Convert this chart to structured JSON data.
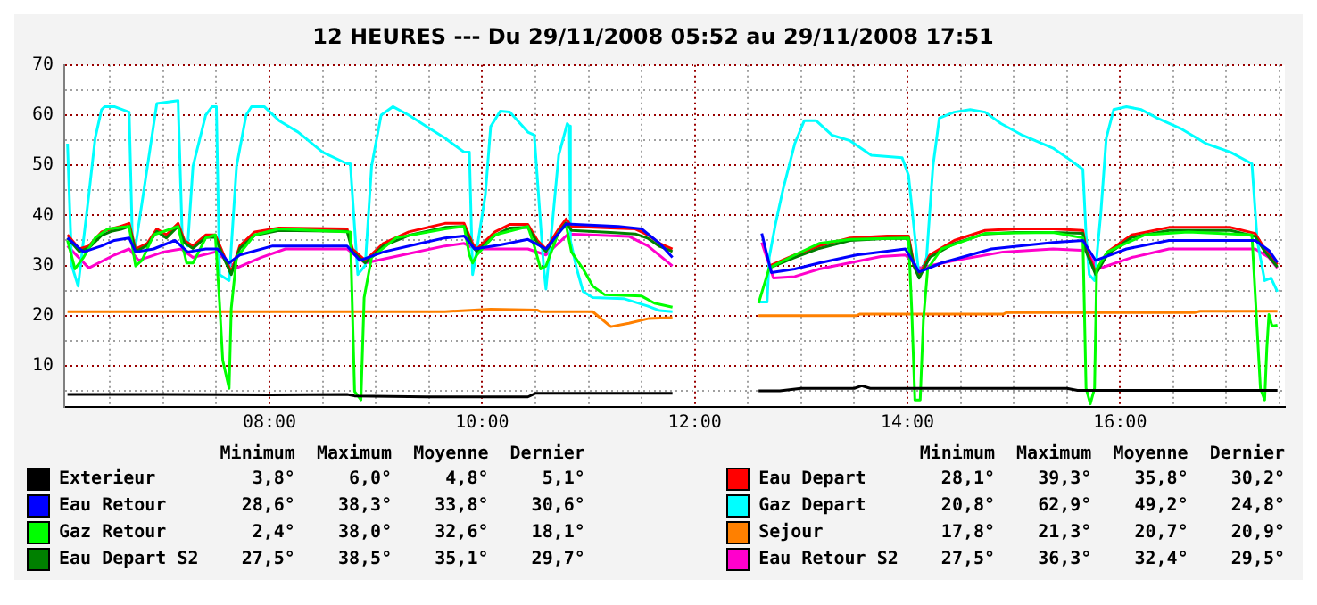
{
  "chart_data": {
    "type": "line",
    "title": "12 HEURES --- Du 29/11/2008 05:52 au 29/11/2008 17:51",
    "xlim": [
      6.07,
      17.55
    ],
    "xticks": [
      {
        "value": 6.5,
        "label": null
      },
      {
        "value": 7,
        "label": null
      },
      {
        "value": 7.5,
        "label": null
      },
      {
        "value": 8,
        "label": "08:00"
      },
      {
        "value": 8.5,
        "label": null
      },
      {
        "value": 9,
        "label": null
      },
      {
        "value": 9.5,
        "label": null
      },
      {
        "value": 10,
        "label": "10:00"
      },
      {
        "value": 10.5,
        "label": null
      },
      {
        "value": 11,
        "label": null
      },
      {
        "value": 11.5,
        "label": null
      },
      {
        "value": 12,
        "label": "12:00"
      },
      {
        "value": 12.5,
        "label": null
      },
      {
        "value": 13,
        "label": null
      },
      {
        "value": 13.5,
        "label": null
      },
      {
        "value": 14,
        "label": "14:00"
      },
      {
        "value": 14.5,
        "label": null
      },
      {
        "value": 15,
        "label": null
      },
      {
        "value": 15.5,
        "label": null
      },
      {
        "value": 16,
        "label": "16:00"
      },
      {
        "value": 16.5,
        "label": null
      },
      {
        "value": 17,
        "label": null
      },
      {
        "value": 17.5,
        "label": null
      }
    ],
    "ylim": [
      1.8,
      70
    ],
    "yticks": [
      {
        "value": 5,
        "label": null
      },
      10,
      {
        "value": 15,
        "label": null
      },
      20,
      {
        "value": 25,
        "label": null
      },
      30,
      {
        "value": 35,
        "label": null
      },
      40,
      {
        "value": 45,
        "label": null
      },
      50,
      {
        "value": 55,
        "label": null
      },
      60,
      {
        "value": 65,
        "label": null
      },
      70
    ],
    "grid": true,
    "legend": "bottom",
    "marker": "none",
    "line_style": "solid",
    "series": [
      {
        "name": "Exterieur",
        "color": "#000000",
        "x": [
          6.1,
          7.0,
          8.0,
          8.73,
          8.8,
          9.48,
          10.43,
          10.5,
          11.79,
          12.2,
          12.6,
          12.8,
          13.0,
          13.5,
          13.57,
          13.65,
          14.5,
          15.5,
          15.6,
          16.5,
          17.48
        ],
        "values": [
          4.3,
          4.3,
          4.2,
          4.3,
          4.0,
          3.8,
          3.8,
          4.5,
          4.5,
          null,
          5.0,
          5.0,
          5.5,
          5.5,
          6.0,
          5.5,
          5.5,
          5.5,
          5.1,
          5.1,
          5.1
        ]
      },
      {
        "name": "Eau Retour",
        "color": "#0000ff",
        "x": [
          6.1,
          6.25,
          6.42,
          6.54,
          6.68,
          6.74,
          6.91,
          7.11,
          7.23,
          7.4,
          7.51,
          7.62,
          7.72,
          8.03,
          8.73,
          8.85,
          9.07,
          9.42,
          9.65,
          9.83,
          9.93,
          10.17,
          10.43,
          10.6,
          10.79,
          11.28,
          11.5,
          11.67,
          11.79,
          12.2,
          12.63,
          12.72,
          12.94,
          13.17,
          13.52,
          13.98,
          14.11,
          14.32,
          14.79,
          15.37,
          15.65,
          15.77,
          16.06,
          16.46,
          17.27,
          17.4,
          17.48
        ],
        "values": [
          35.5,
          32.7,
          33.9,
          35.0,
          35.5,
          32.7,
          33.3,
          35.0,
          32.7,
          33.3,
          33.3,
          30.5,
          32.1,
          33.9,
          33.9,
          31.0,
          32.7,
          34.4,
          35.5,
          35.9,
          33.3,
          34.1,
          35.2,
          33.3,
          38.3,
          37.8,
          37.3,
          34.4,
          31.6,
          null,
          36.4,
          28.6,
          29.3,
          30.5,
          32.1,
          33.3,
          28.7,
          30.5,
          33.3,
          34.6,
          35.0,
          31.0,
          33.3,
          35.0,
          35.0,
          33.0,
          30.6
        ]
      },
      {
        "name": "Gaz Retour",
        "color": "#00ff00",
        "x": [
          6.1,
          6.17,
          6.25,
          6.36,
          6.48,
          6.68,
          6.74,
          6.8,
          6.91,
          7.14,
          7.22,
          7.28,
          7.4,
          7.49,
          7.53,
          7.56,
          7.62,
          7.64,
          7.69,
          7.86,
          8.09,
          8.76,
          8.8,
          8.86,
          8.89,
          8.96,
          9.19,
          9.65,
          9.83,
          9.88,
          9.91,
          9.95,
          10.12,
          10.43,
          10.49,
          10.55,
          10.6,
          10.72,
          10.79,
          10.84,
          10.95,
          11.04,
          11.15,
          11.5,
          11.62,
          11.79,
          12.2,
          12.6,
          12.7,
          12.94,
          13.17,
          13.46,
          14.01,
          14.04,
          14.07,
          14.12,
          14.15,
          14.19,
          14.32,
          14.73,
          15.37,
          15.65,
          15.68,
          15.72,
          15.76,
          15.78,
          15.88,
          16.23,
          16.64,
          17.24,
          17.32,
          17.36,
          17.38,
          17.4,
          17.43,
          17.48
        ],
        "values": [
          35.0,
          29.3,
          31.6,
          35.5,
          37.3,
          37.8,
          29.9,
          31.0,
          36.1,
          37.8,
          30.5,
          30.5,
          35.5,
          36.1,
          22.5,
          11.1,
          5.5,
          21.4,
          31.6,
          36.1,
          37.3,
          36.7,
          4.9,
          3.2,
          23.6,
          31.6,
          35.5,
          37.3,
          37.8,
          32.1,
          30.5,
          32.1,
          36.1,
          37.8,
          33.9,
          29.3,
          29.9,
          36.7,
          38.0,
          32.7,
          29.3,
          25.9,
          24.2,
          23.9,
          22.5,
          21.7,
          null,
          22.5,
          29.5,
          32.1,
          34.4,
          35.2,
          35.5,
          21.4,
          3.2,
          3.2,
          19.1,
          29.3,
          33.3,
          36.4,
          36.6,
          35.5,
          5.5,
          2.4,
          5.5,
          29.3,
          32.7,
          36.1,
          36.7,
          36.1,
          5.5,
          3.2,
          13.4,
          20.2,
          17.9,
          18.1
        ]
      },
      {
        "name": "Eau Depart S2",
        "color": "#008000",
        "x": [
          6.1,
          6.21,
          6.3,
          6.42,
          6.51,
          6.6,
          6.68,
          6.74,
          6.85,
          6.94,
          7.03,
          7.14,
          7.2,
          7.28,
          7.4,
          7.49,
          7.58,
          7.64,
          7.72,
          7.86,
          8.09,
          8.73,
          8.78,
          8.9,
          9.07,
          9.31,
          9.65,
          9.83,
          9.91,
          9.95,
          10.12,
          10.26,
          10.43,
          10.52,
          10.6,
          10.72,
          10.79,
          10.84,
          11.21,
          11.44,
          11.56,
          11.67,
          11.79,
          12.2,
          12.7,
          12.94,
          13.17,
          13.46,
          13.81,
          14.01,
          14.06,
          14.11,
          14.21,
          14.44,
          14.73,
          15.02,
          15.37,
          15.65,
          15.68,
          15.77,
          15.88,
          16.11,
          16.46,
          17.04,
          17.27,
          17.36,
          17.48
        ],
        "values": [
          35.5,
          32.8,
          33.5,
          36.0,
          36.8,
          37.2,
          37.8,
          32.8,
          34.0,
          36.8,
          35.5,
          37.8,
          34.5,
          33.4,
          35.6,
          35.6,
          31.0,
          28.2,
          33.4,
          36.0,
          37.0,
          36.8,
          32.8,
          30.5,
          33.9,
          36.0,
          37.6,
          37.8,
          33.8,
          32.8,
          36.0,
          37.5,
          37.6,
          34.5,
          32.8,
          36.6,
          38.5,
          37.0,
          36.6,
          36.3,
          35.4,
          33.8,
          32.8,
          null,
          29.5,
          31.6,
          33.4,
          35.0,
          35.4,
          35.4,
          29.9,
          27.5,
          31.6,
          34.4,
          36.3,
          36.6,
          36.6,
          36.4,
          32.8,
          28.2,
          32.2,
          35.6,
          37.0,
          37.0,
          35.8,
          32.8,
          29.7
        ]
      },
      {
        "name": "Eau Depart",
        "color": "#ff0000",
        "x": [
          6.1,
          6.21,
          6.3,
          6.42,
          6.51,
          6.6,
          6.68,
          6.74,
          6.85,
          6.94,
          7.03,
          7.14,
          7.2,
          7.28,
          7.4,
          7.49,
          7.58,
          7.64,
          7.72,
          7.86,
          8.09,
          8.73,
          8.78,
          8.9,
          9.07,
          9.31,
          9.65,
          9.83,
          9.91,
          9.95,
          10.12,
          10.26,
          10.43,
          10.52,
          10.6,
          10.72,
          10.79,
          10.84,
          11.21,
          11.44,
          11.56,
          11.67,
          11.79,
          12.2,
          12.7,
          12.94,
          13.17,
          13.46,
          13.81,
          14.01,
          14.06,
          14.11,
          14.21,
          14.44,
          14.73,
          15.02,
          15.37,
          15.65,
          15.68,
          15.77,
          15.88,
          16.11,
          16.46,
          17.04,
          17.27,
          17.36,
          17.48
        ],
        "values": [
          36.1,
          33.3,
          33.9,
          36.7,
          37.3,
          37.8,
          38.4,
          33.3,
          34.4,
          37.3,
          36.1,
          38.4,
          35.0,
          33.9,
          36.1,
          36.1,
          31.6,
          28.7,
          33.9,
          36.7,
          37.5,
          37.3,
          33.3,
          31.0,
          34.4,
          36.7,
          38.4,
          38.4,
          34.4,
          33.3,
          36.7,
          38.2,
          38.2,
          35.0,
          33.3,
          37.3,
          39.3,
          37.8,
          37.5,
          37.3,
          36.1,
          34.4,
          33.3,
          null,
          29.9,
          32.1,
          33.9,
          35.5,
          35.9,
          35.9,
          30.4,
          28.1,
          32.1,
          35.0,
          37.0,
          37.3,
          37.3,
          37.0,
          33.3,
          28.7,
          32.7,
          36.1,
          37.6,
          37.6,
          36.4,
          33.3,
          30.2
        ]
      },
      {
        "name": "Gaz Depart",
        "color": "#00ffff",
        "x": [
          6.1,
          6.14,
          6.2,
          6.3,
          6.36,
          6.42,
          6.45,
          6.54,
          6.68,
          6.71,
          6.74,
          6.94,
          7.14,
          7.18,
          7.23,
          7.28,
          7.4,
          7.46,
          7.5,
          7.53,
          7.62,
          7.69,
          7.78,
          7.83,
          7.95,
          8.09,
          8.27,
          8.5,
          8.73,
          8.76,
          8.83,
          8.9,
          8.96,
          9.05,
          9.16,
          9.31,
          9.48,
          9.65,
          9.83,
          9.88,
          9.91,
          9.93,
          10.03,
          10.08,
          10.17,
          10.26,
          10.43,
          10.49,
          10.58,
          10.6,
          10.66,
          10.72,
          10.8,
          10.82,
          10.83,
          10.89,
          10.95,
          11.04,
          11.33,
          11.56,
          11.67,
          11.79,
          12.2,
          12.6,
          12.68,
          12.7,
          12.76,
          12.83,
          12.94,
          13.03,
          13.14,
          13.29,
          13.46,
          13.66,
          13.95,
          14.01,
          14.11,
          14.18,
          14.24,
          14.3,
          14.44,
          14.59,
          14.73,
          14.88,
          15.08,
          15.37,
          15.54,
          15.65,
          15.68,
          15.71,
          15.76,
          15.82,
          15.87,
          15.94,
          16.06,
          16.2,
          16.35,
          16.58,
          16.81,
          17.04,
          17.24,
          17.29,
          17.36,
          17.42,
          17.48
        ],
        "values": [
          54.3,
          30.0,
          25.9,
          44.0,
          55.4,
          61.1,
          61.7,
          61.7,
          60.6,
          35.0,
          33.9,
          62.3,
          62.9,
          35.0,
          33.9,
          49.8,
          60.0,
          61.7,
          61.7,
          28.2,
          27.0,
          49.8,
          60.0,
          61.7,
          61.7,
          58.9,
          56.6,
          52.6,
          50.3,
          50.3,
          28.2,
          30.0,
          49.8,
          60.0,
          61.7,
          60.0,
          57.7,
          55.4,
          52.6,
          52.6,
          28.2,
          30.5,
          44.1,
          57.7,
          60.8,
          60.6,
          56.6,
          56.0,
          29.3,
          25.3,
          38.4,
          52.0,
          58.3,
          57.8,
          35.0,
          29.3,
          24.8,
          23.6,
          23.4,
          21.9,
          21.0,
          20.8,
          null,
          22.7,
          22.7,
          31.6,
          38.4,
          45.2,
          54.3,
          58.9,
          58.9,
          56.0,
          54.9,
          52.0,
          51.5,
          48.0,
          27.6,
          31.6,
          49.8,
          59.4,
          60.6,
          61.1,
          60.6,
          58.3,
          56.0,
          53.4,
          50.9,
          49.2,
          36.1,
          28.2,
          27.0,
          40.7,
          55.4,
          61.1,
          61.7,
          61.1,
          59.4,
          57.2,
          54.3,
          52.6,
          50.3,
          35.0,
          27.0,
          27.5,
          24.8
        ]
      },
      {
        "name": "Sejour",
        "color": "#ff8000",
        "x": [
          6.1,
          7.0,
          8.0,
          9.0,
          9.65,
          10.08,
          10.52,
          10.55,
          11.04,
          11.21,
          11.38,
          11.56,
          11.79,
          12.2,
          12.6,
          13.52,
          13.55,
          14.9,
          14.93,
          16.7,
          16.75,
          17.0,
          17.48
        ],
        "values": [
          20.8,
          20.8,
          20.8,
          20.8,
          20.8,
          21.3,
          21.1,
          20.8,
          20.8,
          17.8,
          18.5,
          19.4,
          19.6,
          null,
          20.0,
          20.0,
          20.3,
          20.3,
          20.6,
          20.6,
          20.9,
          20.9,
          20.9
        ]
      },
      {
        "name": "Eau Retour S2",
        "color": "#ff00cc",
        "x": [
          6.1,
          6.3,
          6.54,
          6.68,
          6.77,
          7.0,
          7.17,
          7.28,
          7.49,
          7.69,
          7.92,
          8.15,
          8.73,
          8.9,
          9.25,
          9.65,
          9.83,
          9.93,
          10.43,
          10.6,
          10.81,
          11.38,
          11.56,
          11.79,
          12.2,
          12.63,
          12.74,
          12.94,
          13.17,
          13.75,
          13.98,
          14.11,
          14.44,
          14.9,
          15.37,
          15.68,
          15.79,
          16.11,
          16.46,
          17.27,
          17.4,
          17.48
        ],
        "values": [
          33.9,
          29.5,
          32.1,
          33.3,
          31.0,
          32.7,
          33.3,
          31.6,
          32.7,
          29.5,
          31.6,
          33.3,
          33.3,
          30.5,
          32.1,
          33.9,
          34.4,
          33.3,
          33.3,
          32.1,
          36.3,
          35.8,
          33.9,
          29.9,
          null,
          34.6,
          27.5,
          27.8,
          29.3,
          31.8,
          32.1,
          29.5,
          31.0,
          32.7,
          33.3,
          33.0,
          29.3,
          31.6,
          33.3,
          33.3,
          31.6,
          29.5
        ]
      }
    ],
    "annotations": [
      "Minimum",
      "Maximum",
      "Moyenne",
      "Dernier",
      "Minimum",
      "Maximum",
      "Moyenne",
      "Dernier",
      "3,8°",
      "6,0°",
      "4,8°",
      "5,1°",
      "28,6°",
      "38,3°",
      "33,8°",
      "30,6°",
      "2,4°",
      "38,0°",
      "32,6°",
      "18,1°",
      "27,5°",
      "38,5°",
      "35,1°",
      "29,7°",
      "28,1°",
      "39,3°",
      "35,8°",
      "30,2°",
      "20,8°",
      "62,9°",
      "49,2°",
      "24,8°",
      "17,8°",
      "21,3°",
      "20,7°",
      "20,9°",
      "27,5°",
      "36,3°",
      "32,4°",
      "29,5°"
    ]
  }
}
